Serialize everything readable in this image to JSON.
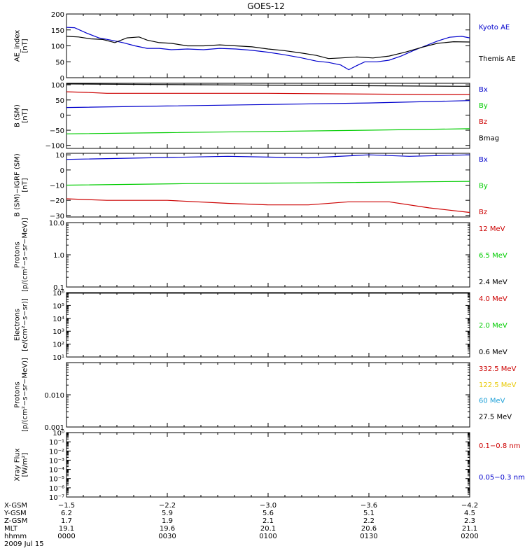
{
  "chart_data": {
    "type": "line",
    "title": "GOES-12",
    "time_ticks": [
      "0000",
      "0030",
      "0100",
      "0130",
      "0200"
    ],
    "panels": [
      {
        "id": "ae",
        "ylabel": "AE_index\n[nT]",
        "scale": "linear",
        "ylim": [
          0,
          200
        ],
        "yticks": [
          "0",
          "50",
          "100",
          "150",
          "200"
        ],
        "ytick_values": [
          0,
          50,
          100,
          150,
          200
        ],
        "series": [
          {
            "name": "Kyoto AE",
            "color": "#0000cc",
            "t": [
              0,
              0.02,
              0.05,
              0.08,
              0.11,
              0.14,
              0.17,
              0.2,
              0.23,
              0.26,
              0.3,
              0.34,
              0.38,
              0.42,
              0.46,
              0.5,
              0.54,
              0.58,
              0.62,
              0.65,
              0.68,
              0.7,
              0.72,
              0.74,
              0.77,
              0.8,
              0.83,
              0.86,
              0.89,
              0.92,
              0.95,
              0.98,
              1.0
            ],
            "v": [
              158,
              157,
              140,
              125,
              118,
              110,
              100,
              92,
              92,
              88,
              90,
              88,
              92,
              90,
              86,
              80,
              72,
              63,
              52,
              48,
              40,
              25,
              38,
              50,
              50,
              55,
              68,
              85,
              100,
              115,
              127,
              130,
              125
            ]
          },
          {
            "name": "Themis AE",
            "color": "#000000",
            "t": [
              0,
              0.03,
              0.06,
              0.09,
              0.12,
              0.15,
              0.18,
              0.2,
              0.23,
              0.26,
              0.3,
              0.34,
              0.38,
              0.42,
              0.46,
              0.5,
              0.54,
              0.58,
              0.62,
              0.65,
              0.68,
              0.72,
              0.76,
              0.8,
              0.84,
              0.88,
              0.92,
              0.96,
              1.0
            ],
            "v": [
              130,
              128,
              122,
              120,
              110,
              125,
              128,
              118,
              110,
              108,
              100,
              100,
              103,
              100,
              97,
              90,
              85,
              78,
              70,
              60,
              62,
              65,
              62,
              68,
              80,
              95,
              108,
              113,
              112
            ]
          }
        ]
      },
      {
        "id": "bsm",
        "ylabel": "B (SM)\n[nT]",
        "scale": "linear",
        "ylim": [
          -110,
          105
        ],
        "yticks": [
          "100",
          "50",
          "0",
          "−50",
          "−100"
        ],
        "ytick_values": [
          100,
          50,
          0,
          -50,
          -100
        ],
        "series": [
          {
            "name": "Bx",
            "color": "#0000cc",
            "t": [
              0,
              0.25,
              0.5,
              0.75,
              1.0
            ],
            "v": [
              25,
              30,
              35,
              40,
              48
            ]
          },
          {
            "name": "By",
            "color": "#00cc00",
            "t": [
              0,
              0.25,
              0.5,
              0.75,
              1.0
            ],
            "v": [
              -62,
              -58,
              -54,
              -50,
              -45
            ]
          },
          {
            "name": "Bz",
            "color": "#cc0000",
            "t": [
              0,
              0.05,
              0.1,
              0.5,
              0.9,
              1.0
            ],
            "v": [
              77,
              75,
              72,
              72,
              68,
              68
            ]
          },
          {
            "name": "Bmag",
            "color": "#000000",
            "t": [
              0,
              1.0
            ],
            "v": [
              103,
              95
            ]
          }
        ]
      },
      {
        "id": "bigrf",
        "ylabel": "B (SM)−IGRF (SM)\n[nT]",
        "scale": "linear",
        "ylim": [
          -31,
          11
        ],
        "yticks": [
          "10",
          "0",
          "−10",
          "−20",
          "−30"
        ],
        "ytick_values": [
          10,
          0,
          -10,
          -20,
          -30
        ],
        "series": [
          {
            "name": "Bx",
            "color": "#0000cc",
            "t": [
              0,
              0.2,
              0.4,
              0.6,
              0.75,
              0.85,
              1.0
            ],
            "v": [
              7,
              8,
              9,
              8,
              10,
              9,
              10
            ]
          },
          {
            "name": "By",
            "color": "#00cc00",
            "t": [
              0,
              0.3,
              0.6,
              1.0
            ],
            "v": [
              -10,
              -9,
              -8.5,
              -7.5
            ]
          },
          {
            "name": "Bz",
            "color": "#cc0000",
            "t": [
              0,
              0.1,
              0.25,
              0.4,
              0.5,
              0.6,
              0.7,
              0.8,
              0.9,
              1.0
            ],
            "v": [
              -19,
              -20,
              -20,
              -22,
              -23,
              -23,
              -21,
              -21,
              -25,
              -28
            ]
          }
        ]
      },
      {
        "id": "protons-low",
        "ylabel": "Protons\n[p/(cm²−s−sr−MeV)]",
        "scale": "log",
        "ylim": [
          0.1,
          10
        ],
        "yticks": [
          "10.0",
          "1.0",
          "0.1"
        ],
        "ytick_values": [
          10,
          1,
          0.1
        ],
        "series": [
          {
            "name": "12 MeV",
            "color": "#cc0000",
            "t": [],
            "v": []
          },
          {
            "name": "6.5 MeV",
            "color": "#00cc00",
            "t": [],
            "v": []
          },
          {
            "name": "2.4 MeV",
            "color": "#000000",
            "t": [],
            "v": []
          }
        ]
      },
      {
        "id": "electrons",
        "ylabel": "Electrons\n[e/(cm²−s−sr)]",
        "scale": "log",
        "ylim": [
          10,
          1000000
        ],
        "yticks": [
          "10⁶",
          "10⁵",
          "10⁴",
          "10³",
          "10²",
          "10¹"
        ],
        "ytick_values": [
          1000000,
          100000,
          10000,
          1000,
          100,
          10
        ],
        "series": [
          {
            "name": "4.0 MeV",
            "color": "#cc0000",
            "t": [],
            "v": []
          },
          {
            "name": "2.0 MeV",
            "color": "#00cc00",
            "t": [],
            "v": []
          },
          {
            "name": "0.6 MeV",
            "color": "#000000",
            "t": [
              0,
              1.0
            ],
            "v": [
              900000,
              900000
            ]
          }
        ]
      },
      {
        "id": "protons-high",
        "ylabel": "Protons\n[p/(cm²−s−sr−MeV)]",
        "scale": "log",
        "ylim": [
          0.001,
          0.1
        ],
        "yticks": [
          "0.010",
          "0.001"
        ],
        "ytick_values": [
          0.01,
          0.001
        ],
        "series": [
          {
            "name": "332.5 MeV",
            "color": "#cc0000",
            "t": [],
            "v": []
          },
          {
            "name": "122.5 MeV",
            "color": "#e8c800",
            "t": [],
            "v": []
          },
          {
            "name": "60 MeV",
            "color": "#1ea0d8",
            "t": [],
            "v": []
          },
          {
            "name": "27.5 MeV",
            "color": "#000000",
            "t": [],
            "v": []
          }
        ]
      },
      {
        "id": "xray",
        "ylabel": "Xray Flux\n[W/m²]",
        "scale": "log",
        "ylim": [
          1e-07,
          1
        ],
        "yticks": [
          "10⁰",
          "10⁻¹",
          "10⁻²",
          "10⁻³",
          "10⁻⁴",
          "10⁻⁵",
          "10⁻⁶",
          "10⁻⁷"
        ],
        "ytick_values": [
          1,
          0.1,
          0.01,
          0.001,
          0.0001,
          1e-05,
          1e-06,
          1e-07
        ],
        "series": [
          {
            "name": "0.1−0.8 nm",
            "color": "#cc0000",
            "t": [],
            "v": []
          },
          {
            "name": "0.05−0.3 nm",
            "color": "#0000cc",
            "t": [],
            "v": []
          }
        ]
      }
    ]
  },
  "footer": {
    "rows": [
      {
        "label": "X-GSM",
        "values": [
          "−1.5",
          "−2.2",
          "−3.0",
          "−3.6",
          "−4.2"
        ]
      },
      {
        "label": "Y-GSM",
        "values": [
          "6.2",
          "5.9",
          "5.6",
          "5.1",
          "4.5"
        ]
      },
      {
        "label": "Z-GSM",
        "values": [
          "1.7",
          "1.9",
          "2.1",
          "2.2",
          "2.3"
        ]
      },
      {
        "label": "MLT",
        "values": [
          "19.1",
          "19.6",
          "20.1",
          "20.6",
          "21.1"
        ]
      },
      {
        "label": "hhmm",
        "values": [
          "0000",
          "0030",
          "0100",
          "0130",
          "0200"
        ]
      }
    ],
    "date": "2009 Jul 15"
  }
}
